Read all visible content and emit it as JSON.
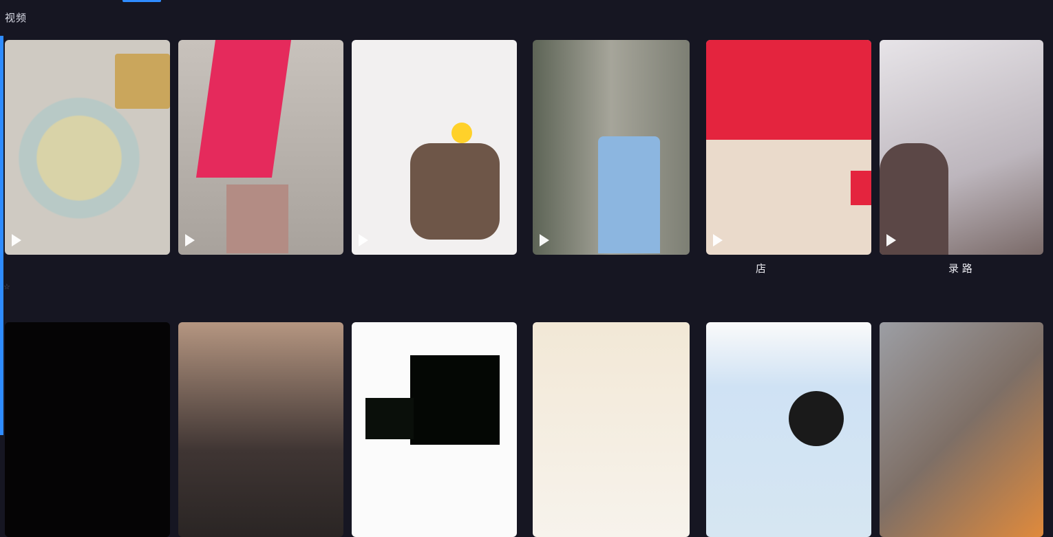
{
  "section": {
    "title": "视频"
  },
  "cards": [
    {
      "caption": "",
      "meta": ""
    },
    {
      "caption": "",
      "meta": ""
    },
    {
      "caption": "",
      "meta": ""
    },
    {
      "caption": "",
      "meta": ""
    },
    {
      "caption": "店",
      "meta": ""
    },
    {
      "caption": "录  路",
      "meta": ""
    },
    {
      "caption": "",
      "meta": ""
    },
    {
      "caption": "",
      "meta": ""
    },
    {
      "caption": "",
      "meta": ""
    },
    {
      "caption": "",
      "meta": ""
    },
    {
      "caption": "",
      "meta": ""
    },
    {
      "caption": "",
      "meta": ""
    }
  ],
  "colors": {
    "accent": "#2f8cff",
    "background": "#161622"
  },
  "icons": {
    "play": "play-icon",
    "favorite": "star-icon"
  }
}
